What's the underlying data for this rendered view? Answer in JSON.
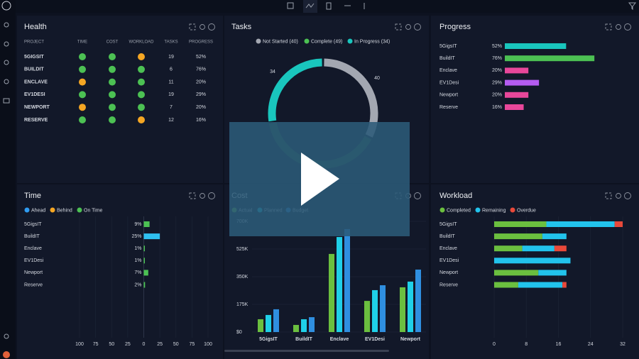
{
  "health": {
    "title": "Health",
    "columns": [
      "PROJECT",
      "TIME",
      "COST",
      "WORKLOAD",
      "TASKS",
      "PROGRESS"
    ],
    "rows": [
      {
        "project": "5GIGSIT",
        "time": "#4cc153",
        "cost": "#4cc153",
        "workload": "#f5a623",
        "tasks": "19",
        "progress": "52%"
      },
      {
        "project": "BUILDIT",
        "time": "#4cc153",
        "cost": "#4cc153",
        "workload": "#4cc153",
        "tasks": "6",
        "progress": "76%"
      },
      {
        "project": "ENCLAVE",
        "time": "#f5a623",
        "cost": "#4cc153",
        "workload": "#4cc153",
        "tasks": "11",
        "progress": "20%"
      },
      {
        "project": "EV1DESI",
        "time": "#4cc153",
        "cost": "#4cc153",
        "workload": "#4cc153",
        "tasks": "19",
        "progress": "29%"
      },
      {
        "project": "NEWPORT",
        "time": "#f5a623",
        "cost": "#4cc153",
        "workload": "#4cc153",
        "tasks": "7",
        "progress": "20%"
      },
      {
        "project": "RESERVE",
        "time": "#4cc153",
        "cost": "#4cc153",
        "workload": "#f5a623",
        "tasks": "12",
        "progress": "16%"
      }
    ]
  },
  "chart_data": [
    {
      "type": "pie",
      "title": "Tasks",
      "categories": [
        "Not Started (40)",
        "Complete (49)",
        "In Progress (34)"
      ],
      "values": [
        40,
        49,
        34
      ],
      "colors": [
        "#a3a7b1",
        "#4cc153",
        "#19c6bd"
      ]
    },
    {
      "type": "progress",
      "title": "Progress",
      "categories": [
        "5GigsIT",
        "BuildIT",
        "Enclave",
        "EV1Desi",
        "Newport",
        "Reserve"
      ],
      "values": [
        52,
        76,
        20,
        29,
        20,
        16
      ],
      "value_labels": [
        "52%",
        "76%",
        "20%",
        "29%",
        "20%",
        "16%"
      ],
      "colors": [
        "#19c6bd",
        "#4cc153",
        "#e8479a",
        "#b45cf0",
        "#e8479a",
        "#e8479a"
      ]
    },
    {
      "type": "diverging",
      "title": "Time",
      "legend": [
        {
          "name": "Ahead",
          "color": "#2f9bf0"
        },
        {
          "name": "Behind",
          "color": "#f5a623"
        },
        {
          "name": "On Time",
          "color": "#4cc153"
        }
      ],
      "categories": [
        "5GigsIT",
        "BuildIT",
        "Enclave",
        "EV1Desi",
        "Newport",
        "Reserve"
      ],
      "values": [
        9,
        25,
        1,
        1,
        7,
        2
      ],
      "value_labels": [
        "9%",
        "25%",
        "1%",
        "1%",
        "7%",
        "2%"
      ],
      "colors": [
        "#4cc153",
        "#2fc0f0",
        "#4cc153",
        "#4cc153",
        "#4cc153",
        "#4cc153"
      ],
      "xlim": [
        -100,
        100
      ],
      "xticks": [
        {
          "value": -100,
          "label": "100"
        },
        {
          "value": -75,
          "label": "75"
        },
        {
          "value": -50,
          "label": "50"
        },
        {
          "value": -25,
          "label": "25"
        },
        0,
        25,
        50,
        75,
        100
      ]
    },
    {
      "type": "grouped",
      "title": "Cost",
      "categories": [
        "5GigsIT",
        "BuildIT",
        "Enclave",
        "EV1Desi",
        "Newport"
      ],
      "series": [
        {
          "name": "Actual",
          "color": "#6bbf3f",
          "values": [
            81000,
            45000,
            494000,
            197000,
            283000
          ]
        },
        {
          "name": "Planned",
          "color": "#1fd0e8",
          "values": [
            108000,
            81000,
            601000,
            265000,
            319000
          ]
        },
        {
          "name": "Budget",
          "color": "#2f8fe0",
          "values": [
            144000,
            94000,
            651000,
            296000,
            395000
          ]
        }
      ],
      "ylim": [
        0,
        700000
      ],
      "yticks": [
        {
          "value": 0,
          "label": "$0"
        },
        {
          "value": 175000,
          "label": "175K"
        },
        {
          "value": 350000,
          "label": "350K"
        },
        {
          "value": 525000,
          "label": "525K"
        },
        {
          "value": 700000,
          "label": "700K"
        }
      ]
    },
    {
      "type": "stacked",
      "title": "Workload",
      "categories": [
        "5GigsIT",
        "BuildIT",
        "Enclave",
        "EV1Desi",
        "Newport",
        "Reserve"
      ],
      "series": [
        {
          "name": "Completed",
          "color": "#6bbf3f",
          "values": [
            13,
            12,
            7,
            0,
            11,
            6
          ]
        },
        {
          "name": "Remaining",
          "color": "#22c3ec",
          "values": [
            17,
            6,
            8,
            19,
            7,
            11
          ]
        },
        {
          "name": "Overdue",
          "color": "#e8493a",
          "values": [
            2,
            0,
            3,
            0,
            0,
            1
          ]
        }
      ],
      "xlim": [
        0,
        32
      ],
      "xticks": [
        0,
        8,
        16,
        24,
        32
      ]
    }
  ]
}
